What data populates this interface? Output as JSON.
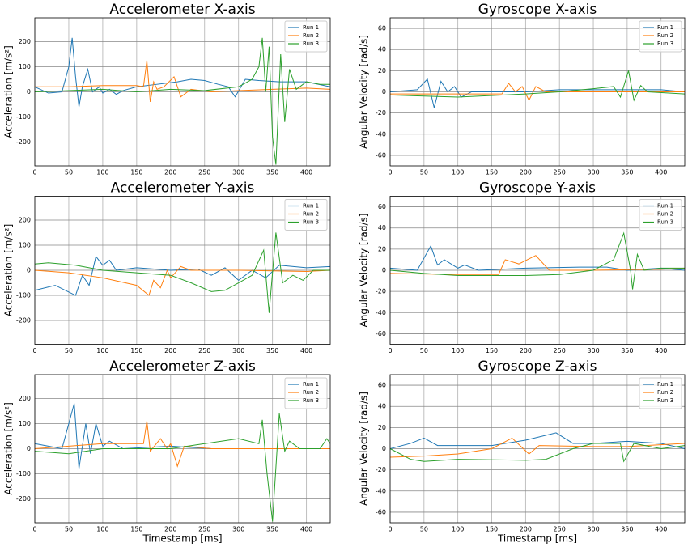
{
  "chart_data": [
    {
      "type": "line",
      "title": "Accelerometer X-axis",
      "ylabel": "Acceleration [m/s²]",
      "xlim": [
        0,
        435
      ],
      "ylim": [
        -295,
        295
      ],
      "xticks": [
        0,
        50,
        100,
        150,
        200,
        250,
        300,
        350,
        400
      ],
      "yticks": [
        -200,
        -100,
        0,
        100,
        200
      ],
      "grid": true,
      "legend": "upper right",
      "series": [
        {
          "name": "Run 1",
          "color": "#1f77b4",
          "x": [
            0,
            20,
            40,
            50,
            55,
            60,
            65,
            70,
            78,
            85,
            95,
            100,
            110,
            120,
            130,
            150,
            180,
            210,
            230,
            250,
            270,
            285,
            295,
            310,
            330,
            360,
            400,
            435
          ],
          "values": [
            20,
            -5,
            0,
            100,
            215,
            60,
            -60,
            20,
            90,
            0,
            20,
            -5,
            10,
            -10,
            5,
            20,
            30,
            40,
            50,
            45,
            30,
            20,
            -20,
            50,
            45,
            40,
            40,
            20
          ]
        },
        {
          "name": "Run 2",
          "color": "#ff7f0e",
          "x": [
            0,
            50,
            100,
            150,
            160,
            165,
            170,
            175,
            180,
            190,
            205,
            215,
            230,
            260,
            300,
            350,
            400,
            435
          ],
          "values": [
            20,
            20,
            25,
            25,
            20,
            125,
            -40,
            40,
            10,
            20,
            60,
            -20,
            10,
            0,
            5,
            10,
            15,
            10
          ]
        },
        {
          "name": "Run 3",
          "color": "#2ca02c",
          "x": [
            0,
            50,
            100,
            150,
            200,
            250,
            300,
            320,
            330,
            335,
            340,
            345,
            350,
            355,
            362,
            368,
            375,
            385,
            400,
            420,
            435
          ],
          "values": [
            0,
            5,
            10,
            0,
            10,
            5,
            20,
            50,
            100,
            215,
            0,
            180,
            -180,
            -290,
            150,
            -120,
            90,
            10,
            40,
            30,
            30
          ]
        }
      ]
    },
    {
      "type": "line",
      "title": "Gyroscope X-axis",
      "ylabel": "Angular Velocity [rad/s]",
      "xlim": [
        0,
        435
      ],
      "ylim": [
        -70,
        70
      ],
      "xticks": [
        0,
        50,
        100,
        150,
        200,
        250,
        300,
        350,
        400
      ],
      "yticks": [
        -60,
        -40,
        -20,
        0,
        20,
        40,
        60
      ],
      "grid": true,
      "legend": "upper right",
      "series": [
        {
          "name": "Run 1",
          "color": "#1f77b4",
          "x": [
            0,
            40,
            55,
            65,
            75,
            85,
            95,
            105,
            120,
            150,
            200,
            250,
            300,
            350,
            400,
            435
          ],
          "values": [
            0,
            2,
            12,
            -15,
            10,
            0,
            5,
            -5,
            0,
            0,
            0,
            2,
            2,
            2,
            2,
            0
          ]
        },
        {
          "name": "Run 2",
          "color": "#ff7f0e",
          "x": [
            0,
            100,
            165,
            175,
            185,
            195,
            205,
            215,
            230,
            300,
            435
          ],
          "values": [
            -2,
            -2,
            -2,
            8,
            0,
            5,
            -8,
            5,
            0,
            0,
            0
          ]
        },
        {
          "name": "Run 3",
          "color": "#2ca02c",
          "x": [
            0,
            100,
            200,
            250,
            300,
            330,
            340,
            352,
            360,
            370,
            380,
            435
          ],
          "values": [
            -3,
            -5,
            -2,
            0,
            3,
            5,
            -5,
            20,
            -8,
            6,
            0,
            -2
          ]
        }
      ]
    },
    {
      "type": "line",
      "title": "Accelerometer Y-axis",
      "ylabel": "Acceleration [m/s²]",
      "xlim": [
        0,
        435
      ],
      "ylim": [
        -295,
        295
      ],
      "xticks": [
        0,
        50,
        100,
        150,
        200,
        250,
        300,
        350,
        400
      ],
      "yticks": [
        -200,
        -100,
        0,
        100,
        200
      ],
      "grid": true,
      "legend": "upper right",
      "series": [
        {
          "name": "Run 1",
          "color": "#1f77b4",
          "x": [
            0,
            30,
            60,
            70,
            80,
            90,
            100,
            110,
            120,
            150,
            200,
            240,
            260,
            280,
            300,
            320,
            340,
            360,
            400,
            435
          ],
          "values": [
            -80,
            -60,
            -100,
            -20,
            -60,
            55,
            20,
            40,
            0,
            10,
            0,
            5,
            -20,
            10,
            -40,
            0,
            -30,
            20,
            10,
            15
          ]
        },
        {
          "name": "Run 2",
          "color": "#ff7f0e",
          "x": [
            0,
            50,
            100,
            150,
            168,
            175,
            185,
            195,
            200,
            215,
            230,
            300,
            400,
            435
          ],
          "values": [
            0,
            -10,
            -30,
            -60,
            -100,
            -40,
            -70,
            0,
            -30,
            15,
            0,
            0,
            -5,
            0
          ]
        },
        {
          "name": "Run 3",
          "color": "#2ca02c",
          "x": [
            0,
            20,
            60,
            100,
            150,
            200,
            230,
            260,
            280,
            300,
            320,
            337,
            345,
            355,
            365,
            380,
            395,
            410,
            435
          ],
          "values": [
            25,
            30,
            20,
            0,
            -10,
            -20,
            -50,
            -85,
            -80,
            -50,
            -20,
            80,
            -170,
            150,
            -50,
            -20,
            -40,
            0,
            0
          ]
        }
      ]
    },
    {
      "type": "line",
      "title": "Gyroscope Y-axis",
      "ylabel": "Angular Velocity [rad/s]",
      "xlim": [
        0,
        435
      ],
      "ylim": [
        -70,
        70
      ],
      "xticks": [
        0,
        50,
        100,
        150,
        200,
        250,
        300,
        350,
        400
      ],
      "yticks": [
        -60,
        -40,
        -20,
        0,
        20,
        40,
        60
      ],
      "grid": true,
      "legend": "upper right",
      "series": [
        {
          "name": "Run 1",
          "color": "#1f77b4",
          "x": [
            0,
            40,
            60,
            70,
            80,
            100,
            110,
            130,
            200,
            280,
            320,
            350,
            400,
            435
          ],
          "values": [
            2,
            0,
            23,
            5,
            10,
            2,
            5,
            0,
            2,
            3,
            3,
            0,
            2,
            0
          ]
        },
        {
          "name": "Run 2",
          "color": "#ff7f0e",
          "x": [
            0,
            100,
            160,
            170,
            190,
            215,
            235,
            300,
            400,
            435
          ],
          "values": [
            -3,
            -4,
            -4,
            10,
            6,
            14,
            0,
            0,
            1,
            2
          ]
        },
        {
          "name": "Run 3",
          "color": "#2ca02c",
          "x": [
            0,
            50,
            100,
            200,
            250,
            300,
            330,
            345,
            355,
            358,
            365,
            375,
            400,
            435
          ],
          "values": [
            0,
            -3,
            -5,
            -5,
            -4,
            0,
            10,
            35,
            0,
            -18,
            15,
            0,
            2,
            2
          ]
        }
      ]
    },
    {
      "type": "line",
      "title": "Accelerometer Z-axis",
      "ylabel": "Acceleration [m/s²]",
      "xlabel": "Timestamp [ms]",
      "xlim": [
        0,
        435
      ],
      "ylim": [
        -295,
        295
      ],
      "xticks": [
        0,
        50,
        100,
        150,
        200,
        250,
        300,
        350,
        400
      ],
      "yticks": [
        -200,
        -100,
        0,
        100,
        200
      ],
      "grid": true,
      "legend": "upper right",
      "series": [
        {
          "name": "Run 1",
          "color": "#1f77b4",
          "x": [
            0,
            40,
            58,
            65,
            75,
            82,
            90,
            100,
            110,
            130,
            200,
            260,
            330,
            400,
            435
          ],
          "values": [
            20,
            0,
            180,
            -80,
            100,
            -20,
            100,
            10,
            30,
            0,
            10,
            0,
            0,
            0,
            0
          ]
        },
        {
          "name": "Run 2",
          "color": "#ff7f0e",
          "x": [
            0,
            50,
            100,
            160,
            165,
            170,
            185,
            195,
            200,
            210,
            220,
            260,
            350,
            435
          ],
          "values": [
            0,
            10,
            20,
            20,
            110,
            -10,
            40,
            0,
            20,
            -70,
            10,
            0,
            0,
            0
          ]
        },
        {
          "name": "Run 3",
          "color": "#2ca02c",
          "x": [
            0,
            50,
            100,
            200,
            250,
            300,
            330,
            335,
            342,
            350,
            360,
            368,
            375,
            390,
            420,
            430,
            435
          ],
          "values": [
            -10,
            -20,
            0,
            0,
            20,
            40,
            20,
            115,
            -100,
            -290,
            140,
            -10,
            30,
            0,
            0,
            40,
            20
          ]
        }
      ]
    },
    {
      "type": "line",
      "title": "Gyroscope Z-axis",
      "ylabel": "Angular Velocity [rad/s]",
      "xlabel": "Timestamp [ms]",
      "xlim": [
        0,
        435
      ],
      "ylim": [
        -70,
        70
      ],
      "xticks": [
        0,
        50,
        100,
        150,
        200,
        250,
        300,
        350,
        400
      ],
      "yticks": [
        -60,
        -40,
        -20,
        0,
        20,
        40,
        60
      ],
      "grid": true,
      "legend": "upper right",
      "series": [
        {
          "name": "Run 1",
          "color": "#1f77b4",
          "x": [
            0,
            30,
            50,
            70,
            100,
            150,
            200,
            245,
            270,
            300,
            350,
            400,
            435
          ],
          "values": [
            0,
            5,
            10,
            3,
            3,
            3,
            8,
            15,
            5,
            5,
            7,
            5,
            0
          ]
        },
        {
          "name": "Run 2",
          "color": "#ff7f0e",
          "x": [
            0,
            50,
            100,
            150,
            180,
            205,
            220,
            300,
            350,
            435
          ],
          "values": [
            -8,
            -7,
            -5,
            0,
            10,
            -5,
            3,
            2,
            2,
            5
          ]
        },
        {
          "name": "Run 3",
          "color": "#2ca02c",
          "x": [
            0,
            30,
            50,
            100,
            200,
            230,
            270,
            300,
            340,
            345,
            360,
            400,
            435
          ],
          "values": [
            0,
            -10,
            -12,
            -10,
            -11,
            -10,
            0,
            5,
            5,
            -12,
            5,
            0,
            3
          ]
        }
      ]
    }
  ]
}
